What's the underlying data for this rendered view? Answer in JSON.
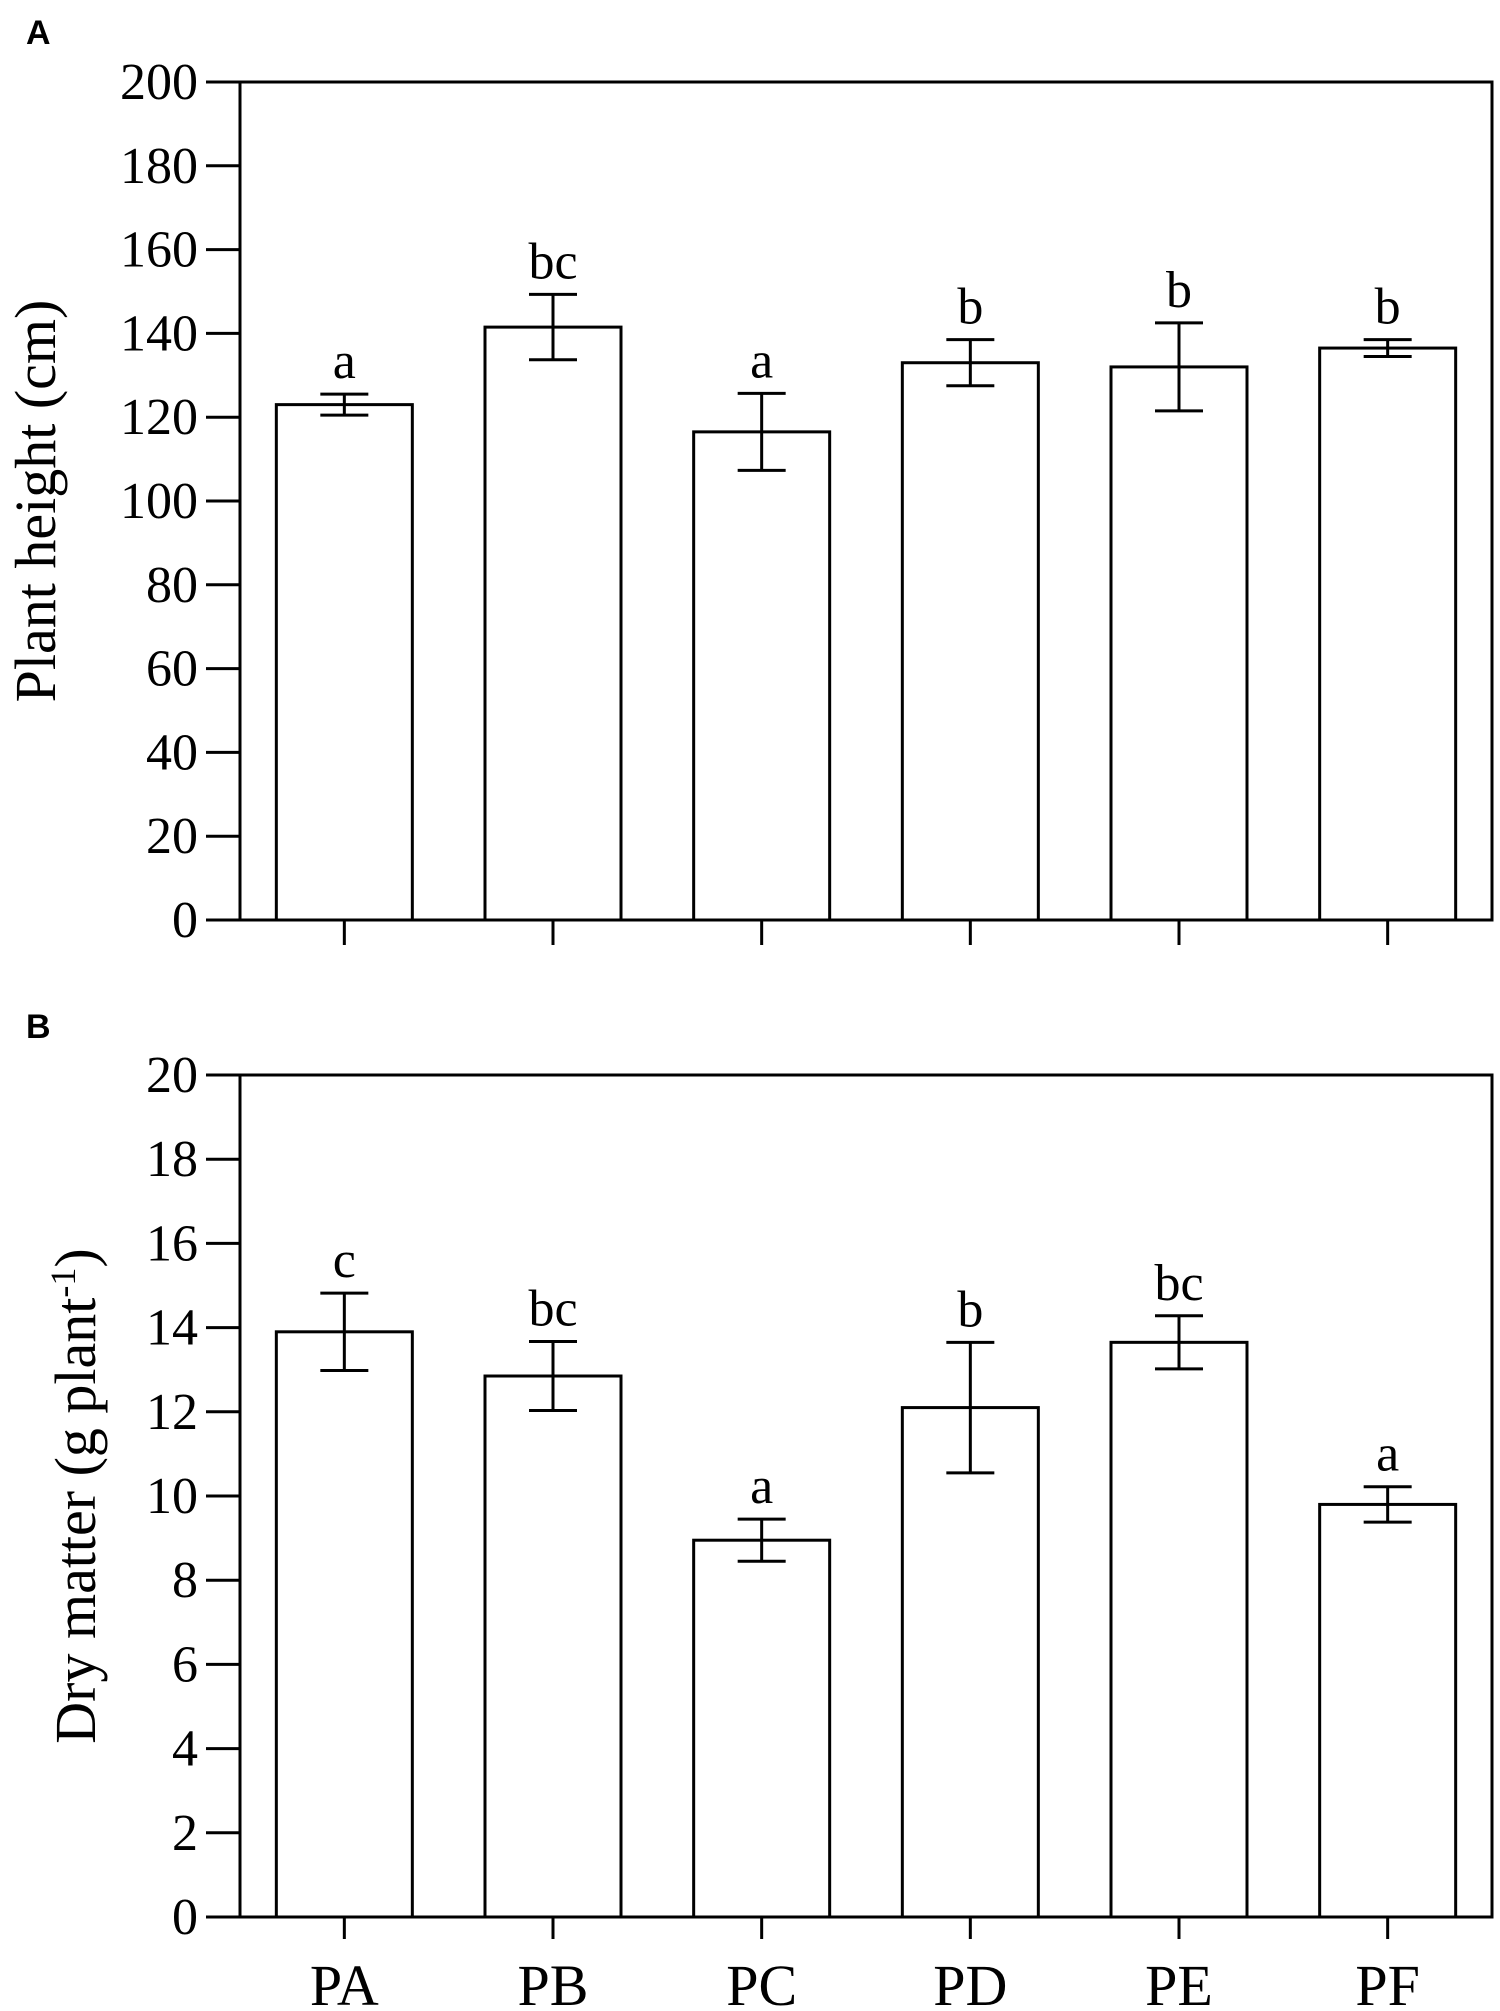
{
  "chart_data": [
    {
      "type": "bar",
      "panel": "A",
      "ylabel": "Plant height (cm)",
      "ylim": [
        0,
        200
      ],
      "yticks": [
        0,
        20,
        40,
        60,
        80,
        100,
        120,
        140,
        160,
        180,
        200
      ],
      "categories": [
        "PA",
        "PB",
        "PC",
        "PD",
        "PE",
        "PF"
      ],
      "show_category_labels": false,
      "values": [
        123,
        141.5,
        116.5,
        133,
        132,
        136.5
      ],
      "errors": [
        2.5,
        7.8,
        9.2,
        5.5,
        10.5,
        2.0
      ],
      "significance": [
        "a",
        "bc",
        "a",
        "b",
        "b",
        "b"
      ],
      "colors": {
        "bar_fill": "#ffffff",
        "stroke": "#000000"
      }
    },
    {
      "type": "bar",
      "panel": "B",
      "ylabel": "Dry matter (g plant",
      "ylabel_superscript": "-1",
      "ylabel_suffix": ")",
      "ylim": [
        0,
        20
      ],
      "yticks": [
        0,
        2,
        4,
        6,
        8,
        10,
        12,
        14,
        16,
        18,
        20
      ],
      "categories": [
        "PA",
        "PB",
        "PC",
        "PD",
        "PE",
        "PF"
      ],
      "show_category_labels": true,
      "values": [
        13.9,
        12.85,
        8.95,
        12.1,
        13.65,
        9.8
      ],
      "errors": [
        0.92,
        0.82,
        0.5,
        1.55,
        0.63,
        0.42
      ],
      "significance": [
        "c",
        "bc",
        "a",
        "b",
        "bc",
        "a"
      ],
      "colors": {
        "bar_fill": "#ffffff",
        "stroke": "#000000"
      }
    }
  ]
}
